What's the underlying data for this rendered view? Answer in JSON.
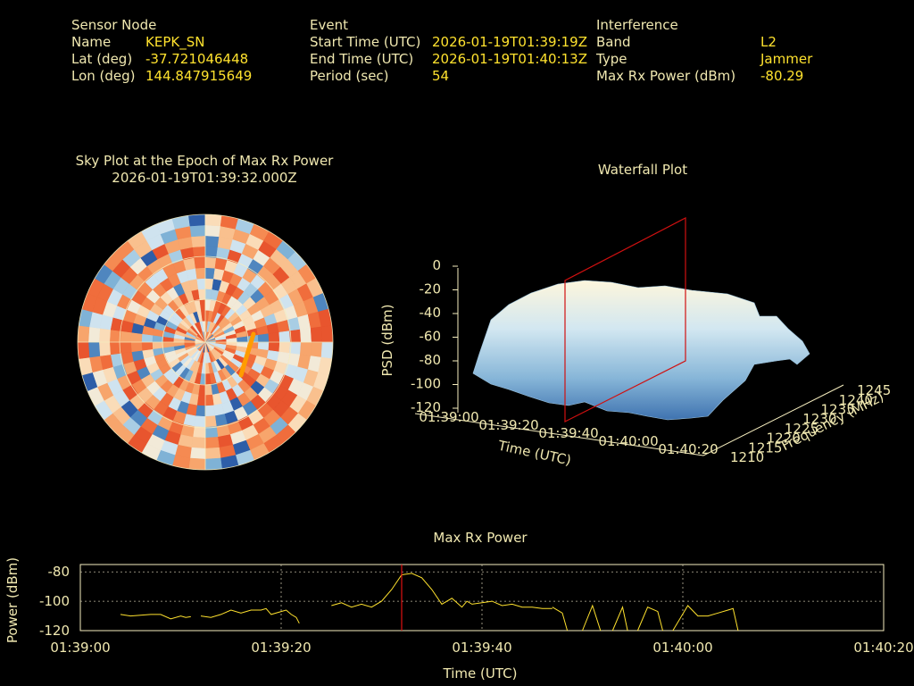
{
  "header": {
    "sensor": {
      "heading": "Sensor Node",
      "rows": [
        {
          "label": "Name",
          "value": "KEPK_SN"
        },
        {
          "label": "Lat (deg)",
          "value": "-37.721046448"
        },
        {
          "label": "Lon (deg)",
          "value": "144.847915649"
        }
      ]
    },
    "event": {
      "heading": "Event",
      "rows": [
        {
          "label": "Start Time (UTC)",
          "value": "2026-01-19T01:39:19Z"
        },
        {
          "label": "End Time (UTC)",
          "value": "2026-01-19T01:40:13Z"
        },
        {
          "label": "Period (sec)",
          "value": "54"
        }
      ]
    },
    "interference": {
      "heading": "Interference",
      "rows": [
        {
          "label": "Band",
          "value": "L2"
        },
        {
          "label": "Type",
          "value": "Jammer"
        },
        {
          "label": "Max Rx Power (dBm)",
          "value": "-80.29"
        }
      ]
    }
  },
  "sky_plot": {
    "title": "Sky Plot at the Epoch of Max Rx Power",
    "epoch": "2026-01-19T01:39:32.000Z"
  },
  "waterfall": {
    "title": "Waterfall Plot",
    "zlabel": "PSD (dBm)",
    "xlabel": "Time (UTC)",
    "ylabel": "Frequency (MHz)",
    "z_ticks": [
      "0",
      "-20",
      "-40",
      "-60",
      "-80",
      "-100",
      "-120"
    ],
    "time_ticks": [
      "01:39:00",
      "01:39:20",
      "01:39:40",
      "01:40:00",
      "01:40:20"
    ],
    "freq_ticks": [
      "1210",
      "1215",
      "1220",
      "1225",
      "1230",
      "1235",
      "1240",
      "1245"
    ]
  },
  "chart_data": {
    "type": "line",
    "title": "Max Rx Power",
    "xlabel": "Time (UTC)",
    "ylabel": "Power (dBm)",
    "x_ticks": [
      "01:39:00",
      "01:39:20",
      "01:39:40",
      "01:40:00",
      "01:40:20"
    ],
    "y_ticks": [
      "-80",
      "-100",
      "-120"
    ],
    "xlim_sec": [
      0,
      80
    ],
    "ylim": [
      -120,
      -75
    ],
    "marker_sec": 32,
    "line_color": "#ffe22e",
    "marker_color": "#e01010",
    "segments": [
      [
        [
          4,
          -109
        ],
        [
          5,
          -110
        ],
        [
          6,
          -109.5
        ],
        [
          7,
          -109
        ],
        [
          8,
          -109
        ],
        [
          9,
          -112
        ],
        [
          10,
          -110
        ],
        [
          10.5,
          -111
        ],
        [
          11,
          -110.5
        ]
      ],
      [
        [
          12,
          -110
        ],
        [
          13,
          -111
        ],
        [
          14,
          -109
        ],
        [
          15,
          -106
        ],
        [
          16,
          -108
        ],
        [
          17,
          -106
        ],
        [
          18,
          -106
        ],
        [
          18.5,
          -105
        ],
        [
          19,
          -109
        ],
        [
          20,
          -107
        ],
        [
          20.5,
          -106
        ],
        [
          21,
          -109
        ],
        [
          21.5,
          -111
        ],
        [
          21.8,
          -115
        ]
      ],
      [
        [
          25,
          -103
        ],
        [
          26,
          -101
        ],
        [
          27,
          -104
        ],
        [
          28,
          -102
        ],
        [
          29,
          -104
        ],
        [
          30,
          -100
        ],
        [
          31,
          -92
        ],
        [
          32,
          -82
        ],
        [
          33,
          -81
        ],
        [
          34,
          -84
        ],
        [
          35,
          -92
        ],
        [
          36,
          -102
        ],
        [
          37,
          -98
        ],
        [
          38,
          -104
        ],
        [
          38.5,
          -100
        ],
        [
          39,
          -102
        ],
        [
          40,
          -101
        ],
        [
          41,
          -100
        ],
        [
          42,
          -103
        ],
        [
          43,
          -102
        ],
        [
          44,
          -104
        ],
        [
          45,
          -104
        ],
        [
          46,
          -105
        ],
        [
          47,
          -105
        ]
      ],
      [
        [
          47,
          -104
        ],
        [
          48,
          -108
        ],
        [
          48.5,
          -120
        ]
      ],
      [
        [
          50,
          -120
        ],
        [
          51,
          -103
        ],
        [
          51.8,
          -120
        ]
      ],
      [
        [
          53,
          -120
        ],
        [
          54,
          -104
        ],
        [
          54.5,
          -120
        ]
      ],
      [
        [
          55.5,
          -120
        ],
        [
          56.5,
          -104
        ],
        [
          57.5,
          -107
        ],
        [
          58,
          -120
        ]
      ],
      [
        [
          59,
          -120
        ],
        [
          60.5,
          -103
        ],
        [
          61.5,
          -110
        ],
        [
          62.5,
          -110
        ],
        [
          63.5,
          -108
        ],
        [
          64.5,
          -106
        ],
        [
          65,
          -105
        ],
        [
          65.5,
          -120
        ]
      ]
    ]
  }
}
